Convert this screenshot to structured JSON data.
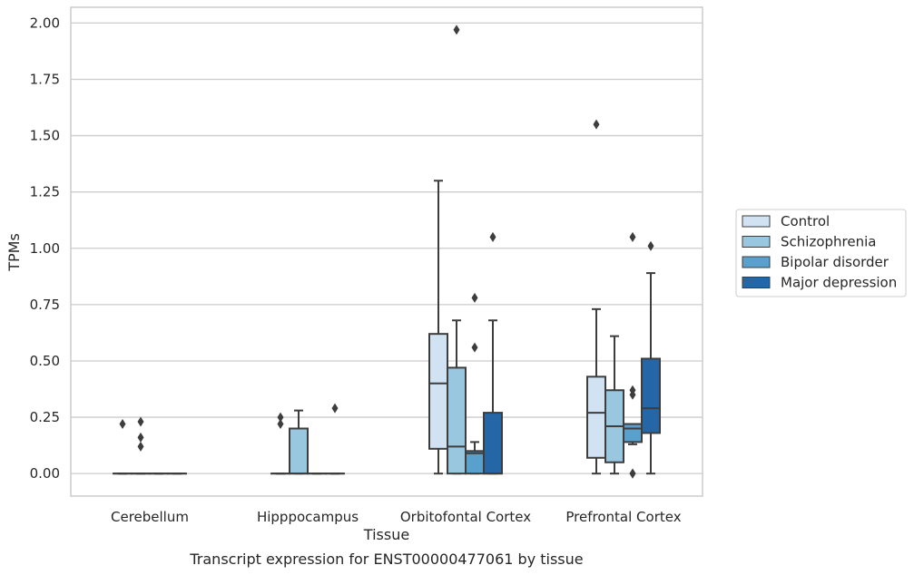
{
  "chart_data": {
    "type": "box",
    "title": "",
    "caption": "Transcript expression for ENST00000477061 by tissue",
    "xlabel": "Tissue",
    "ylabel": "TPMs",
    "ylim": [
      -0.1,
      2.07
    ],
    "yticks": [
      "0.00",
      "0.25",
      "0.50",
      "0.75",
      "1.00",
      "1.25",
      "1.50",
      "1.75",
      "2.00"
    ],
    "grid": "horizontal",
    "legend_position": "right",
    "categories": [
      "Cerebellum",
      "Hipppocampus",
      "Orbitofontal Cortex",
      "Prefrontal Cortex"
    ],
    "series": [
      {
        "name": "Control",
        "color": "#d1e2f2",
        "boxes": [
          {
            "q1": 0,
            "median": 0,
            "q3": 0,
            "whislo": 0,
            "whishi": 0,
            "fliers": [
              0.22
            ]
          },
          {
            "q1": 0,
            "median": 0,
            "q3": 0,
            "whislo": 0,
            "whishi": 0,
            "fliers": [
              0.22,
              0.25
            ]
          },
          {
            "q1": 0.11,
            "median": 0.4,
            "q3": 0.62,
            "whislo": 0,
            "whishi": 1.3,
            "fliers": []
          },
          {
            "q1": 0.07,
            "median": 0.27,
            "q3": 0.43,
            "whislo": 0,
            "whishi": 0.73,
            "fliers": [
              1.55
            ]
          }
        ]
      },
      {
        "name": "Schizophrenia",
        "color": "#9ac7e0",
        "boxes": [
          {
            "q1": 0,
            "median": 0,
            "q3": 0,
            "whislo": 0,
            "whishi": 0,
            "fliers": [
              0.12,
              0.16,
              0.23
            ]
          },
          {
            "q1": 0,
            "median": 0,
            "q3": 0.2,
            "whislo": 0,
            "whishi": 0.28,
            "fliers": []
          },
          {
            "q1": 0,
            "median": 0.12,
            "q3": 0.47,
            "whislo": 0,
            "whishi": 0.68,
            "fliers": [
              1.97
            ]
          },
          {
            "q1": 0.05,
            "median": 0.21,
            "q3": 0.37,
            "whislo": 0,
            "whishi": 0.61,
            "fliers": []
          }
        ]
      },
      {
        "name": "Bipolar disorder",
        "color": "#5aa0cd",
        "boxes": [
          {
            "q1": 0,
            "median": 0,
            "q3": 0,
            "whislo": 0,
            "whishi": 0,
            "fliers": []
          },
          {
            "q1": 0,
            "median": 0,
            "q3": 0,
            "whislo": 0,
            "whishi": 0,
            "fliers": []
          },
          {
            "q1": 0,
            "median": 0.09,
            "q3": 0.1,
            "whislo": 0,
            "whishi": 0.14,
            "fliers": [
              0.56,
              0.78
            ]
          },
          {
            "q1": 0.14,
            "median": 0.2,
            "q3": 0.22,
            "whislo": 0.13,
            "whishi": 0.22,
            "fliers": [
              0.0,
              0.0,
              0.35,
              0.37,
              1.05
            ]
          }
        ]
      },
      {
        "name": "Major depression",
        "color": "#2566a6",
        "boxes": [
          {
            "q1": 0,
            "median": 0,
            "q3": 0,
            "whislo": 0,
            "whishi": 0,
            "fliers": []
          },
          {
            "q1": 0,
            "median": 0,
            "q3": 0,
            "whislo": 0,
            "whishi": 0,
            "fliers": [
              0.29
            ]
          },
          {
            "q1": 0,
            "median": 0,
            "q3": 0.27,
            "whislo": 0,
            "whishi": 0.68,
            "fliers": [
              1.05
            ]
          },
          {
            "q1": 0.18,
            "median": 0.29,
            "q3": 0.51,
            "whislo": 0,
            "whishi": 0.89,
            "fliers": [
              1.01
            ]
          }
        ]
      }
    ]
  }
}
